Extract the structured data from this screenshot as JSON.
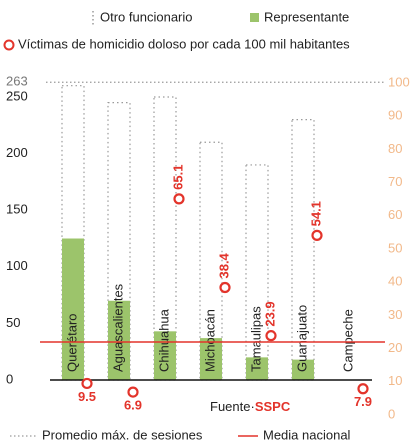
{
  "chart_data": {
    "type": "bar",
    "categories": [
      "Querétaro",
      "Aguascalientes",
      "Chihuahua",
      "Michoacán",
      "Tamaulipas",
      "Guanajuato",
      "Campeche"
    ],
    "series": [
      {
        "name": "Otro funcionario",
        "color": "#9a9a9a",
        "style": "dotted",
        "values": [
          260,
          245,
          250,
          210,
          190,
          230,
          0
        ]
      },
      {
        "name": "Representante",
        "color": "#9cc46b",
        "values": [
          125,
          70,
          43,
          37,
          20,
          18,
          0
        ]
      },
      {
        "name": "Víctimas de homicidio doloso por cada 100 mil habitantes",
        "color": "#e3342b",
        "axis": "y2",
        "marker": "circle",
        "values": [
          9.5,
          6.9,
          65.1,
          38.4,
          23.9,
          54.1,
          7.9
        ]
      }
    ],
    "ylim": [
      0,
      250
    ],
    "yticks": [
      0,
      50,
      100,
      150,
      200,
      250
    ],
    "y2lim": [
      0,
      100
    ],
    "y2ticks": [
      0,
      10,
      20,
      30,
      40,
      50,
      60,
      70,
      80,
      90,
      100
    ],
    "reference_lines": [
      {
        "name": "Promedio máx. de sesiones",
        "value": 263,
        "label": "263",
        "style": "dotted",
        "color": "#9a9a9a"
      },
      {
        "name": "Media nacional",
        "value": 22,
        "axis": "y2",
        "color": "#e3342b"
      }
    ],
    "source": {
      "label": "Fuente·",
      "name": "SSPC"
    }
  }
}
